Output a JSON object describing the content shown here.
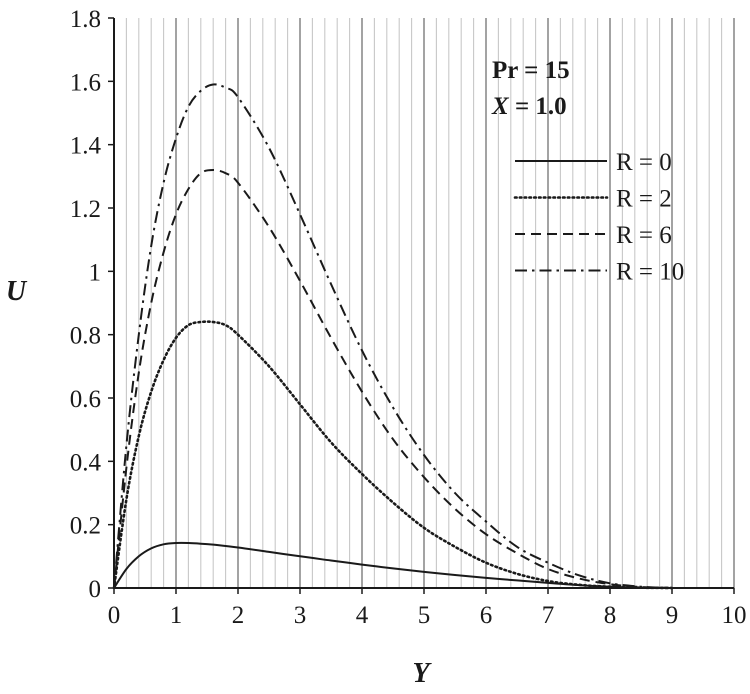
{
  "chart_data": {
    "type": "line",
    "title": "",
    "xlabel": "Y",
    "ylabel": "U",
    "xlim": [
      0,
      10
    ],
    "ylim": [
      0,
      1.8
    ],
    "x_ticks": [
      "0",
      "1",
      "2",
      "3",
      "4",
      "5",
      "6",
      "7",
      "8",
      "9",
      "10"
    ],
    "y_ticks": [
      "0",
      "0.2",
      "0.4",
      "0.6",
      "0.8",
      "1",
      "1.2",
      "1.4",
      "1.6",
      "1.8"
    ],
    "grid": "vertical",
    "legend_position": "top-right",
    "annotations": {
      "pr": "Pr = 15",
      "x_prefix": "X",
      "x_value": " = 1.0"
    },
    "series": [
      {
        "name": "R = 0",
        "style": "solid",
        "x": [
          0,
          0.2,
          0.4,
          0.6,
          0.8,
          1.0,
          1.2,
          1.4,
          1.6,
          2.0,
          2.5,
          3.0,
          3.5,
          4.0,
          4.5,
          5.0,
          5.5,
          6.0,
          6.5,
          7.0,
          7.5,
          8.0,
          8.5,
          9.0
        ],
        "y": [
          0,
          0.06,
          0.1,
          0.125,
          0.138,
          0.142,
          0.142,
          0.14,
          0.137,
          0.128,
          0.114,
          0.1,
          0.087,
          0.074,
          0.062,
          0.051,
          0.041,
          0.032,
          0.024,
          0.016,
          0.009,
          0.004,
          0.001,
          0
        ]
      },
      {
        "name": "R = 2",
        "style": "dotted",
        "x": [
          0,
          0.2,
          0.4,
          0.6,
          0.8,
          1.0,
          1.2,
          1.4,
          1.6,
          1.8,
          2.0,
          2.5,
          3.0,
          3.5,
          4.0,
          4.5,
          5.0,
          5.5,
          6.0,
          6.5,
          7.0,
          7.5,
          8.0,
          8.5,
          9.0
        ],
        "y": [
          0,
          0.28,
          0.48,
          0.62,
          0.72,
          0.79,
          0.83,
          0.84,
          0.84,
          0.83,
          0.8,
          0.7,
          0.58,
          0.46,
          0.36,
          0.27,
          0.19,
          0.13,
          0.08,
          0.045,
          0.022,
          0.01,
          0.004,
          0.001,
          0
        ]
      },
      {
        "name": "R = 6",
        "style": "dashed",
        "x": [
          0,
          0.2,
          0.4,
          0.6,
          0.8,
          1.0,
          1.2,
          1.4,
          1.6,
          1.8,
          2.0,
          2.5,
          3.0,
          3.5,
          4.0,
          4.5,
          5.0,
          5.5,
          6.0,
          6.5,
          7.0,
          7.5,
          8.0,
          8.5,
          9.0
        ],
        "y": [
          0,
          0.38,
          0.68,
          0.9,
          1.06,
          1.18,
          1.26,
          1.31,
          1.32,
          1.31,
          1.28,
          1.14,
          0.97,
          0.79,
          0.62,
          0.47,
          0.35,
          0.25,
          0.17,
          0.11,
          0.06,
          0.03,
          0.012,
          0.003,
          0
        ]
      },
      {
        "name": "R = 10",
        "style": "dashdot",
        "x": [
          0,
          0.2,
          0.4,
          0.6,
          0.8,
          1.0,
          1.2,
          1.4,
          1.6,
          1.8,
          2.0,
          2.5,
          3.0,
          3.5,
          4.0,
          4.5,
          5.0,
          5.5,
          6.0,
          6.5,
          7.0,
          7.5,
          8.0,
          8.5,
          9.0
        ],
        "y": [
          0,
          0.45,
          0.8,
          1.08,
          1.28,
          1.42,
          1.52,
          1.57,
          1.59,
          1.58,
          1.55,
          1.39,
          1.18,
          0.96,
          0.75,
          0.57,
          0.42,
          0.3,
          0.21,
          0.13,
          0.08,
          0.04,
          0.015,
          0.004,
          0
        ]
      }
    ]
  }
}
